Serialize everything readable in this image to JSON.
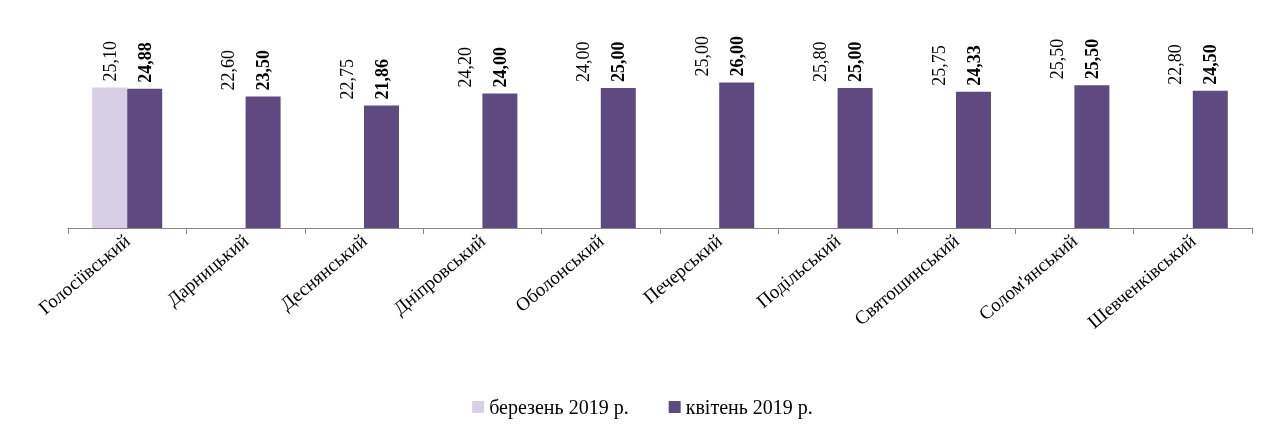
{
  "chart_data": {
    "type": "bar",
    "categories": [
      "Голосіївський",
      "Дарницький",
      "Деснянський",
      "Дніпровський",
      "Оболонський",
      "Печерський",
      "Подільський",
      "Святошинський",
      "Солом'янський",
      "Шевченківський"
    ],
    "series": [
      {
        "name": "березень 2019 р.",
        "color": "#d6cfe6",
        "values": [
          25.1,
          null,
          null,
          null,
          null,
          null,
          null,
          null,
          null,
          null
        ],
        "value_labels": [
          "25,10",
          "22,60",
          "22,75",
          "24,20",
          "24,00",
          "25,00",
          "25,80",
          "25,75",
          "25,50",
          "22,80"
        ]
      },
      {
        "name": "квітень 2019 р.",
        "color": "#5e4a80",
        "values": [
          24.88,
          23.5,
          21.86,
          24.0,
          25.0,
          26.0,
          25.0,
          24.33,
          25.5,
          24.5
        ],
        "value_labels": [
          "24,88",
          "23,50",
          "21,86",
          "24,00",
          "25,00",
          "26,00",
          "25,00",
          "24,33",
          "25,50",
          "24,50"
        ]
      }
    ],
    "legend": "bottom",
    "grid": false
  }
}
